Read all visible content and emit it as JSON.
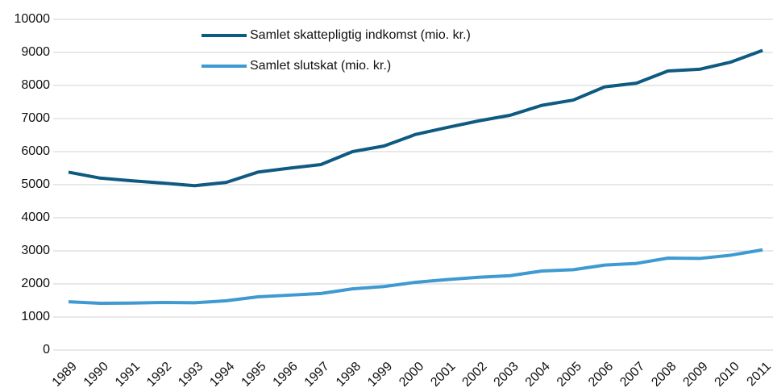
{
  "chart_data": {
    "type": "line",
    "categories": [
      "1989",
      "1990",
      "1991",
      "1992",
      "1993",
      "1994",
      "1995",
      "1996",
      "1997",
      "1998",
      "1999",
      "2000",
      "2001",
      "2002",
      "2003",
      "2004",
      "2005",
      "2006",
      "2007",
      "2008",
      "2009",
      "2010",
      "2011"
    ],
    "series": [
      {
        "name": "Samlet skattepligtig indkomst (mio. kr.)",
        "color": "#0e5a81",
        "values": [
          5380,
          5200,
          5120,
          5050,
          4970,
          5070,
          5380,
          5500,
          5610,
          6000,
          6170,
          6520,
          6730,
          6930,
          7100,
          7400,
          7560,
          7960,
          8070,
          8440,
          8490,
          8710,
          9060
        ]
      },
      {
        "name": "Samlet slutskat (mio. kr.)",
        "color": "#3e9ad0",
        "values": [
          1460,
          1415,
          1420,
          1440,
          1430,
          1490,
          1610,
          1660,
          1710,
          1850,
          1920,
          2050,
          2130,
          2200,
          2250,
          2390,
          2430,
          2570,
          2620,
          2780,
          2770,
          2870,
          3030
        ]
      }
    ],
    "ylim": [
      0,
      10000
    ],
    "yticks": [
      0,
      1000,
      2000,
      3000,
      4000,
      5000,
      6000,
      7000,
      8000,
      9000,
      10000
    ],
    "grid": true,
    "legend": "upper center"
  }
}
